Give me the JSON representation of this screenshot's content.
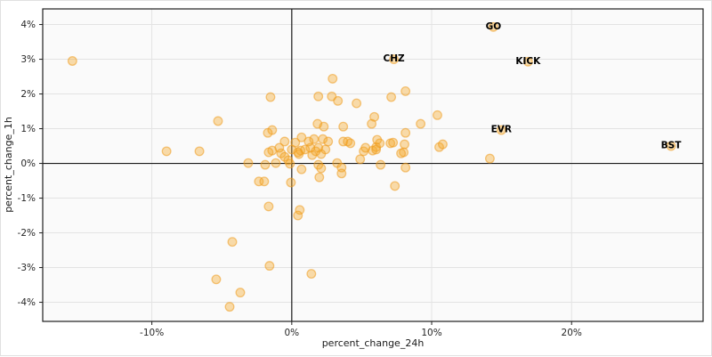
{
  "chart_data": {
    "type": "scatter",
    "title": "",
    "xlabel": "percent_change_24h",
    "ylabel": "percent_change_1h",
    "xlim": [
      -17.8,
      29.4
    ],
    "ylim": [
      -4.55,
      4.45
    ],
    "grid": true,
    "zero_lines": true,
    "legend": "none",
    "x_ticks": [
      {
        "value": -10,
        "label": "-10%"
      },
      {
        "value": 0,
        "label": "0%"
      },
      {
        "value": 10,
        "label": "10%"
      },
      {
        "value": 20,
        "label": "20%"
      }
    ],
    "y_ticks": [
      {
        "value": 4,
        "label": "4%"
      },
      {
        "value": 3,
        "label": "3%"
      },
      {
        "value": 2,
        "label": "2%"
      },
      {
        "value": 1,
        "label": "1%"
      },
      {
        "value": 0,
        "label": "0%"
      },
      {
        "value": -1,
        "label": "-1%"
      },
      {
        "value": -2,
        "label": "-2%"
      },
      {
        "value": -3,
        "label": "-3%"
      },
      {
        "value": -4,
        "label": "-4%"
      }
    ],
    "colors": {
      "plot_background": "#fafafa",
      "grid": "#e3e3e3",
      "zero_line": "#1a1a1a",
      "border": "#1f1f1f",
      "tick_text": "#262626",
      "label_text": "#000000"
    },
    "marker": {
      "fill": "#f5a623",
      "fill_opacity": 0.38,
      "stroke": "#ef9a1c",
      "stroke_opacity": 0.55,
      "radius": 4.8
    },
    "labeled_points": [
      {
        "label": "GO",
        "x": 14.41,
        "y": 3.93
      },
      {
        "label": "CHZ",
        "x": 7.3,
        "y": 3.0
      },
      {
        "label": "KICK",
        "x": 16.89,
        "y": 2.93
      },
      {
        "label": "EVR",
        "x": 14.98,
        "y": 0.96
      },
      {
        "label": "BST",
        "x": 27.11,
        "y": 0.5
      }
    ],
    "points": [
      [
        -15.68,
        2.95
      ],
      [
        -8.95,
        0.35
      ],
      [
        -6.6,
        0.35
      ],
      [
        -5.27,
        1.22
      ],
      [
        -4.25,
        -2.26
      ],
      [
        -1.59,
        -2.95
      ],
      [
        -5.4,
        -3.34
      ],
      [
        -3.68,
        -3.72
      ],
      [
        -4.44,
        -4.13
      ],
      [
        -1.65,
        -1.24
      ],
      [
        1.4,
        -3.18
      ],
      [
        -3.11,
        0.01
      ],
      [
        -2.35,
        -0.52
      ],
      [
        -1.97,
        -0.52
      ],
      [
        -1.9,
        -0.04
      ],
      [
        -1.52,
        1.91
      ],
      [
        2.92,
        2.44
      ],
      [
        1.9,
        1.93
      ],
      [
        2.86,
        1.93
      ],
      [
        3.3,
        1.8
      ],
      [
        4.63,
        1.73
      ],
      [
        5.9,
        1.34
      ],
      [
        1.84,
        1.14
      ],
      [
        3.68,
        1.06
      ],
      [
        2.29,
        1.06
      ],
      [
        5.71,
        1.14
      ],
      [
        9.21,
        1.14
      ],
      [
        10.41,
        1.39
      ],
      [
        8.13,
        2.08
      ],
      [
        7.11,
        1.91
      ],
      [
        14.16,
        0.14
      ],
      [
        7.37,
        -0.65
      ],
      [
        8.13,
        -0.12
      ],
      [
        6.35,
        -0.04
      ],
      [
        10.54,
        0.47
      ],
      [
        -1.4,
        0.96
      ],
      [
        -1.71,
        0.88
      ],
      [
        0.7,
        0.75
      ],
      [
        1.59,
        0.7
      ],
      [
        2.22,
        0.7
      ],
      [
        -0.51,
        0.63
      ],
      [
        2.6,
        0.63
      ],
      [
        3.68,
        0.63
      ],
      [
        -0.89,
        0.45
      ],
      [
        0.0,
        0.4
      ],
      [
        0.63,
        0.37
      ],
      [
        1.33,
        0.45
      ],
      [
        1.9,
        0.45
      ],
      [
        2.41,
        0.4
      ],
      [
        -1.4,
        0.37
      ],
      [
        0.51,
        0.27
      ],
      [
        1.46,
        0.24
      ],
      [
        2.1,
        0.27
      ],
      [
        0.25,
        0.6
      ],
      [
        1.21,
        0.63
      ],
      [
        0.44,
        0.32
      ],
      [
        0.95,
        0.4
      ],
      [
        1.71,
        0.35
      ],
      [
        -1.65,
        0.32
      ],
      [
        -0.76,
        0.29
      ],
      [
        -0.51,
        0.19
      ],
      [
        -0.25,
        0.09
      ],
      [
        -0.13,
        -0.01
      ],
      [
        -1.14,
        0.01
      ],
      [
        1.9,
        -0.04
      ],
      [
        2.1,
        -0.14
      ],
      [
        3.24,
        0.01
      ],
      [
        3.56,
        -0.12
      ],
      [
        3.56,
        -0.29
      ],
      [
        0.7,
        -0.17
      ],
      [
        -0.06,
        -0.55
      ],
      [
        1.97,
        -0.4
      ],
      [
        0.57,
        -1.34
      ],
      [
        0.44,
        -1.5
      ],
      [
        5.14,
        0.35
      ],
      [
        4.89,
        0.12
      ],
      [
        5.78,
        0.37
      ],
      [
        6.03,
        0.47
      ],
      [
        6.29,
        0.58
      ],
      [
        7.05,
        0.58
      ],
      [
        8.06,
        0.55
      ],
      [
        8.0,
        0.32
      ],
      [
        4.0,
        0.63
      ],
      [
        4.19,
        0.58
      ],
      [
        6.1,
        0.68
      ],
      [
        7.24,
        0.6
      ],
      [
        5.27,
        0.45
      ],
      [
        6.03,
        0.4
      ],
      [
        10.79,
        0.55
      ],
      [
        7.81,
        0.29
      ],
      [
        8.13,
        0.88
      ]
    ]
  }
}
